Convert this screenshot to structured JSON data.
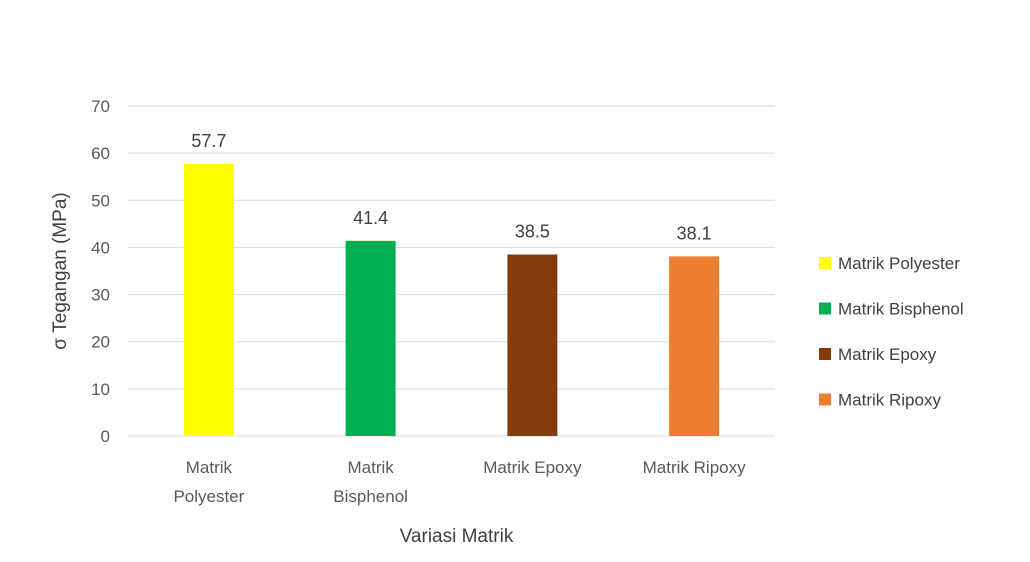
{
  "chart_data": {
    "type": "bar",
    "title": "",
    "xlabel": "Variasi Matrik",
    "ylabel": "σ Tegangan (MPa)",
    "ylim": [
      0,
      70
    ],
    "yticks": [
      0,
      10,
      20,
      30,
      40,
      50,
      60,
      70
    ],
    "grid": true,
    "legend_position": "right",
    "categories": [
      [
        "Matrik",
        "Polyester"
      ],
      [
        "Matrik",
        "Bisphenol"
      ],
      [
        "Matrik Epoxy"
      ],
      [
        "Matrik Ripoxy"
      ]
    ],
    "values": [
      57.7,
      41.4,
      38.5,
      38.1
    ],
    "value_labels": [
      "57.7",
      "41.4",
      "38.5",
      "38.1"
    ],
    "colors": [
      "#ffff00",
      "#00b050",
      "#843c0c",
      "#ed7d31"
    ],
    "legend": [
      {
        "name": "Matrik Polyester",
        "color": "#ffff00"
      },
      {
        "name": "Matrik Bisphenol",
        "color": "#00b050"
      },
      {
        "name": "Matrik Epoxy",
        "color": "#843c0c"
      },
      {
        "name": "Matrik Ripoxy",
        "color": "#ed7d31"
      }
    ]
  }
}
